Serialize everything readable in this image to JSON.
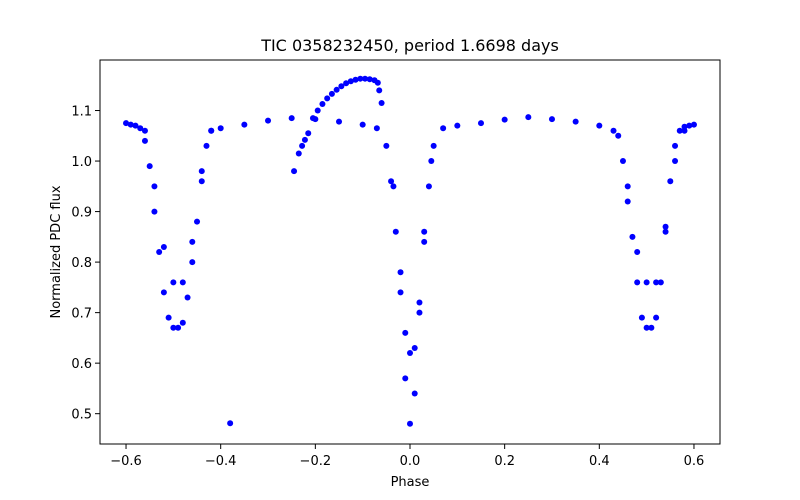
{
  "chart_data": {
    "type": "scatter",
    "title": "TIC 0358232450, period 1.6698 days",
    "xlabel": "Phase",
    "ylabel": "Normalized PDC flux",
    "xlim": [
      -0.655,
      0.655
    ],
    "ylim": [
      0.44,
      1.2
    ],
    "xticks": [
      -0.6,
      -0.4,
      -0.2,
      0.0,
      0.2,
      0.4,
      0.6
    ],
    "xtick_labels": [
      "−0.6",
      "−0.4",
      "−0.2",
      "0.0",
      "0.2",
      "0.4",
      "0.6"
    ],
    "yticks": [
      0.5,
      0.6,
      0.7,
      0.8,
      0.9,
      1.0,
      1.1
    ],
    "ytick_labels": [
      "0.5",
      "0.6",
      "0.7",
      "0.8",
      "0.9",
      "1.0",
      "1.1"
    ],
    "grid": false,
    "marker_color": "#0000ff",
    "series": [
      {
        "name": "",
        "points": [
          [
            -0.6,
            1.075
          ],
          [
            -0.59,
            1.072
          ],
          [
            -0.58,
            1.07
          ],
          [
            -0.57,
            1.065
          ],
          [
            -0.56,
            1.04
          ],
          [
            -0.55,
            0.99
          ],
          [
            -0.54,
            0.9
          ],
          [
            -0.53,
            0.82
          ],
          [
            -0.52,
            0.74
          ],
          [
            -0.51,
            0.69
          ],
          [
            -0.5,
            0.67
          ],
          [
            -0.49,
            0.67
          ],
          [
            -0.48,
            0.68
          ],
          [
            -0.47,
            0.73
          ],
          [
            -0.46,
            0.8
          ],
          [
            -0.45,
            0.88
          ],
          [
            -0.44,
            0.96
          ],
          [
            -0.43,
            1.03
          ],
          [
            -0.42,
            1.06
          ],
          [
            -0.4,
            1.065
          ],
          [
            -0.35,
            1.072
          ],
          [
            -0.3,
            1.08
          ],
          [
            -0.25,
            1.085
          ],
          [
            -0.2,
            1.083
          ],
          [
            -0.15,
            1.078
          ],
          [
            -0.1,
            1.072
          ],
          [
            -0.07,
            1.065
          ],
          [
            -0.05,
            1.03
          ],
          [
            -0.04,
            0.96
          ],
          [
            -0.03,
            0.86
          ],
          [
            -0.02,
            0.74
          ],
          [
            -0.01,
            0.57
          ],
          [
            0.0,
            0.48
          ],
          [
            0.01,
            0.54
          ],
          [
            0.02,
            0.7
          ],
          [
            0.03,
            0.84
          ],
          [
            0.04,
            0.95
          ],
          [
            0.05,
            1.03
          ],
          [
            0.07,
            1.065
          ],
          [
            0.1,
            1.07
          ],
          [
            0.15,
            1.075
          ],
          [
            0.2,
            1.082
          ],
          [
            0.25,
            1.087
          ],
          [
            0.3,
            1.083
          ],
          [
            0.35,
            1.078
          ],
          [
            0.4,
            1.07
          ],
          [
            0.43,
            1.06
          ],
          [
            0.45,
            1.0
          ],
          [
            0.46,
            0.92
          ],
          [
            0.47,
            0.85
          ],
          [
            0.48,
            0.76
          ],
          [
            0.49,
            0.69
          ],
          [
            0.5,
            0.67
          ],
          [
            0.51,
            0.67
          ],
          [
            0.52,
            0.69
          ],
          [
            0.53,
            0.76
          ],
          [
            0.54,
            0.86
          ],
          [
            0.55,
            0.96
          ],
          [
            0.56,
            1.03
          ],
          [
            0.57,
            1.06
          ],
          [
            0.58,
            1.068
          ],
          [
            0.59,
            1.07
          ],
          [
            0.6,
            1.072
          ]
        ]
      },
      {
        "name": "",
        "points": [
          [
            -0.56,
            1.06
          ],
          [
            -0.54,
            0.95
          ],
          [
            -0.52,
            0.83
          ],
          [
            -0.5,
            0.76
          ],
          [
            -0.48,
            0.76
          ],
          [
            -0.46,
            0.84
          ],
          [
            -0.44,
            0.98
          ],
          [
            -0.42,
            1.06
          ],
          [
            -0.035,
            0.95
          ],
          [
            -0.02,
            0.78
          ],
          [
            -0.01,
            0.66
          ],
          [
            0.0,
            0.62
          ],
          [
            0.01,
            0.63
          ],
          [
            0.02,
            0.72
          ],
          [
            0.03,
            0.86
          ],
          [
            0.045,
            1.0
          ],
          [
            0.44,
            1.05
          ],
          [
            0.46,
            0.95
          ],
          [
            0.48,
            0.82
          ],
          [
            0.5,
            0.76
          ],
          [
            0.52,
            0.76
          ],
          [
            0.54,
            0.87
          ],
          [
            0.56,
            1.0
          ],
          [
            0.58,
            1.06
          ]
        ]
      },
      {
        "name": "",
        "points": [
          [
            -0.245,
            0.98
          ],
          [
            -0.235,
            1.015
          ],
          [
            -0.228,
            1.03
          ],
          [
            -0.222,
            1.042
          ],
          [
            -0.215,
            1.055
          ],
          [
            -0.205,
            1.085
          ],
          [
            -0.195,
            1.1
          ],
          [
            -0.185,
            1.113
          ],
          [
            -0.175,
            1.124
          ],
          [
            -0.165,
            1.133
          ],
          [
            -0.155,
            1.141
          ],
          [
            -0.145,
            1.148
          ],
          [
            -0.135,
            1.154
          ],
          [
            -0.125,
            1.158
          ],
          [
            -0.115,
            1.161
          ],
          [
            -0.105,
            1.163
          ],
          [
            -0.095,
            1.163
          ],
          [
            -0.085,
            1.162
          ],
          [
            -0.075,
            1.16
          ],
          [
            -0.068,
            1.155
          ],
          [
            -0.065,
            1.14
          ],
          [
            -0.06,
            1.115
          ],
          [
            -0.38,
            0.481
          ]
        ]
      }
    ]
  }
}
